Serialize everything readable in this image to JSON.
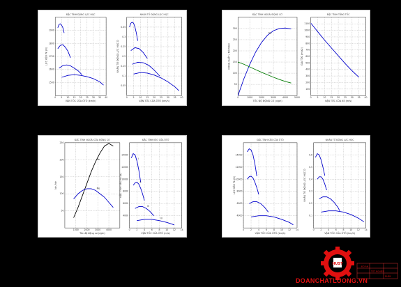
{
  "watermark": "DOANCHATLUONG.VN",
  "logo_text": "HUST",
  "colors": {
    "blue": "#0000cc",
    "green": "#007a00",
    "black": "#000000",
    "red": "#e01010"
  },
  "panels": [
    {
      "id": "p1",
      "title": "ĐẶC TÍNH ĐỘNG LỰC HỌC",
      "xlabel": "VẬN TỐC CỦA ÔTÔ (km/h)",
      "ylabel": "LỰC KÉO Pk (N)",
      "chart_data": {
        "type": "line",
        "xlim": [
          0,
          40
        ],
        "ylim": [
          1400,
          2000
        ],
        "xticks": [
          0,
          5,
          10,
          15,
          20,
          25,
          30,
          35,
          40
        ],
        "yticks": [
          1500,
          1600,
          1700,
          1800,
          1900
        ],
        "series": [
          {
            "name": "",
            "color": "#0000cc",
            "x": [
              2,
              3,
              4,
              5,
              6,
              7
            ],
            "y": [
              1920,
              1945,
              1950,
              1940,
              1920,
              1880
            ]
          },
          {
            "name": "",
            "color": "#0000cc",
            "x": [
              2,
              4,
              6,
              8,
              10,
              12
            ],
            "y": [
              1760,
              1785,
              1790,
              1770,
              1740,
              1690
            ]
          },
          {
            "name": "",
            "color": "#0000cc",
            "x": [
              3,
              6,
              9,
              12,
              15,
              18,
              21
            ],
            "y": [
              1610,
              1630,
              1635,
              1628,
              1610,
              1590,
              1560
            ]
          },
          {
            "name": "",
            "color": "#0000cc",
            "x": [
              5,
              10,
              15,
              20,
              25,
              30,
              35,
              38
            ],
            "y": [
              1540,
              1555,
              1560,
              1555,
              1545,
              1530,
              1505,
              1480
            ]
          }
        ]
      }
    },
    {
      "id": "p2",
      "title": "NHÂN TỐ ĐỘNG LỰC HỌC",
      "xlabel": "VẬN TỐC CỦA ÔTÔ (km/h)",
      "ylabel": "NHÂN TỐ ĐỘNG LỰC HỌC D",
      "chart_data": {
        "type": "line",
        "xlim": [
          0,
          40
        ],
        "ylim": [
          0,
          0.4
        ],
        "xticks": [
          0,
          5,
          10,
          15,
          20,
          25,
          30,
          35,
          40
        ],
        "yticks": [
          0.05,
          0.1,
          0.15,
          0.2,
          0.25,
          0.3,
          0.35
        ],
        "series": [
          {
            "name": "",
            "color": "#0000cc",
            "x": [
              2,
              3,
              4,
              5,
              6,
              7,
              8
            ],
            "y": [
              0.35,
              0.37,
              0.375,
              0.37,
              0.35,
              0.32,
              0.28
            ]
          },
          {
            "name": "",
            "color": "#0000cc",
            "x": [
              3,
              6,
              9,
              12,
              15
            ],
            "y": [
              0.23,
              0.245,
              0.24,
              0.22,
              0.19
            ]
          },
          {
            "name": "",
            "color": "#0000cc",
            "x": [
              4,
              8,
              12,
              16,
              20,
              24
            ],
            "y": [
              0.16,
              0.17,
              0.168,
              0.155,
              0.13,
              0.1
            ]
          },
          {
            "name": "",
            "color": "#0000cc",
            "x": [
              5,
              10,
              15,
              20,
              25,
              30,
              35,
              38
            ],
            "y": [
              0.11,
              0.118,
              0.115,
              0.105,
              0.09,
              0.07,
              0.045,
              0.025
            ]
          }
        ]
      }
    },
    {
      "id": "p3",
      "title": "ĐẶC TÍNH NGOÀI ĐỘNG CƠ",
      "xlabel": "TỐC ĐỘ ĐỘNG CƠ (v/ph)",
      "ylabel": "CÔNG SUẤT / MÔ MEN",
      "chart_data": {
        "type": "line",
        "xlim": [
          0,
          5000
        ],
        "ylim": [
          0,
          350
        ],
        "xticks": [
          0,
          1000,
          2000,
          3000,
          4000,
          5000
        ],
        "yticks": [
          50,
          100,
          150,
          200,
          250,
          300
        ],
        "series": [
          {
            "name": "Ne",
            "color": "#0000cc",
            "x": [
              0,
              500,
              1000,
              1500,
              2000,
              2500,
              3000,
              3500,
              4000,
              4500
            ],
            "y": [
              0,
              75,
              140,
              195,
              238,
              270,
              290,
              300,
              302,
              298
            ]
          },
          {
            "name": "Me",
            "color": "#007a00",
            "x": [
              0,
              500,
              1000,
              1500,
              2000,
              2500,
              3000,
              3500,
              4000,
              4500
            ],
            "y": [
              150,
              140,
              128,
              116,
              104,
              93,
              82,
              72,
              63,
              56
            ]
          }
        ]
      }
    },
    {
      "id": "p4",
      "title": "ĐẶC TÍNH TĂNG TỐC",
      "xlabel": "VẬN TỐC CỦA XE (m/s)",
      "ylabel": "GIA TỐC (m/s2)",
      "chart_data": {
        "type": "line",
        "xlim": [
          0,
          40
        ],
        "ylim": [
          0,
          1200
        ],
        "xticks": [
          0,
          5,
          10,
          15,
          20,
          25,
          30,
          35,
          40
        ],
        "yticks": [
          100,
          200,
          300,
          400,
          500,
          600,
          700,
          800,
          900,
          1000,
          1100
        ],
        "series": [
          {
            "name": "",
            "color": "#0000cc",
            "x": [
              0,
              5,
              10,
              15,
              20,
              25,
              30,
              35
            ],
            "y": [
              1110,
              980,
              850,
              730,
              610,
              490,
              380,
              280
            ]
          }
        ]
      }
    },
    {
      "id": "p5",
      "title": "ĐẶC TÍNH NGOÀI CỦA ĐỘNG CƠ",
      "xlabel": "Tốc độ động cơ (v/ph)",
      "ylabel": "Ne, Me",
      "chart_data": {
        "type": "line",
        "xlim": [
          0,
          5000
        ],
        "ylim": [
          0,
          250
        ],
        "xticks": [
          1000,
          2000,
          3000,
          4000
        ],
        "yticks": [
          50,
          100,
          150,
          200,
          250
        ],
        "series": [
          {
            "name": "Ne",
            "color": "#000000",
            "x": [
              800,
              1200,
              1600,
              2000,
              2400,
              2800,
              3200,
              3600,
              4000,
              4400
            ],
            "y": [
              30,
              60,
              95,
              130,
              165,
              195,
              220,
              240,
              248,
              240
            ]
          },
          {
            "name": "Me",
            "color": "#0000cc",
            "x": [
              800,
              1200,
              1600,
              2000,
              2400,
              2800,
              3200,
              3600,
              4000,
              4400
            ],
            "y": [
              85,
              100,
              110,
              115,
              115,
              110,
              100,
              90,
              75,
              60
            ]
          }
        ]
      }
    },
    {
      "id": "p6",
      "title": "ĐẶC TÍNH KÉO CỦA ÔTÔ",
      "xlabel": "VẬN TỐC CỦA ÔTÔ (m/s)",
      "ylabel": "ĐẶC TÍNH KÉO Pk (N)",
      "chart_data": {
        "type": "line",
        "xlim": [
          0,
          14
        ],
        "ylim": [
          2000,
          16000
        ],
        "xticks": [
          0,
          2,
          4,
          6,
          8,
          10,
          12,
          14
        ],
        "yticks": [
          4000,
          6000,
          8000,
          10000,
          12000,
          14000
        ],
        "series": [
          {
            "name": "I",
            "color": "#0000cc",
            "x": [
              0.5,
              1,
              1.5,
              2,
              2.5,
              3
            ],
            "y": [
              13500,
              14200,
              14000,
              13000,
              11500,
              9500
            ]
          },
          {
            "name": "II",
            "color": "#0000cc",
            "x": [
              1,
              1.5,
              2,
              2.5,
              3,
              3.5,
              4
            ],
            "y": [
              9000,
              9400,
              9500,
              9200,
              8500,
              7600,
              6500
            ]
          },
          {
            "name": "III",
            "color": "#0000cc",
            "x": [
              1.5,
              2.5,
              3.5,
              4.5,
              5.5,
              6.5
            ],
            "y": [
              5200,
              5500,
              5500,
              5200,
              4700,
              4000
            ]
          },
          {
            "name": "IV",
            "color": "#0000cc",
            "x": [
              2,
              4,
              6,
              8,
              10,
              12
            ],
            "y": [
              3200,
              3400,
              3400,
              3200,
              2900,
              2500
            ]
          }
        ]
      }
    },
    {
      "id": "p7",
      "title": "ĐẶC TÍNH KÉO CỦA ÔTÔ",
      "xlabel": "VẬN TỐC CỦA ÔTÔ (km/h)",
      "ylabel": "LỰC KÉO Pk (N)",
      "chart_data": {
        "type": "line",
        "xlim": [
          0,
          14
        ],
        "ylim": [
          2000,
          16000
        ],
        "xticks": [
          0,
          2,
          4,
          6,
          8,
          10,
          12,
          14
        ],
        "yticks": [
          4000,
          6000,
          8000,
          10000,
          12000,
          14000
        ],
        "series": [
          {
            "name": "",
            "color": "#0000cc",
            "x": [
              1,
              1.5,
              2,
              2.5,
              3,
              3.5
            ],
            "y": [
              14500,
              15000,
              14800,
              14000,
              12500,
              10500
            ]
          },
          {
            "name": "",
            "color": "#0000cc",
            "x": [
              1,
              1.5,
              2,
              2.5,
              3,
              3.5,
              4
            ],
            "y": [
              10000,
              10400,
              10500,
              10200,
              9500,
              8600,
              7500
            ]
          },
          {
            "name": "",
            "color": "#0000cc",
            "x": [
              1.5,
              2.5,
              3.5,
              4.5,
              5.5,
              6.5
            ],
            "y": [
              6000,
              6300,
              6300,
              6000,
              5400,
              4600
            ]
          },
          {
            "name": "",
            "color": "#0000cc",
            "x": [
              2,
              4,
              6,
              8,
              10,
              12,
              13
            ],
            "y": [
              3800,
              4000,
              4000,
              3800,
              3400,
              2900,
              2500
            ]
          }
        ]
      }
    },
    {
      "id": "p8",
      "title": "NHÂN TỐ ĐỘNG LỰC HỌC",
      "xlabel": "VẬN TỐC CỦA ÔTÔ (km/h)",
      "ylabel": "NHÂN TỐ ĐỘNG LỰC HỌC D",
      "chart_data": {
        "type": "line",
        "xlim": [
          0,
          14
        ],
        "ylim": [
          0,
          0.7
        ],
        "xticks": [
          0,
          2,
          4,
          6,
          8,
          10,
          12,
          14
        ],
        "yticks": [
          0.1,
          0.2,
          0.3,
          0.4,
          0.5,
          0.6
        ],
        "series": [
          {
            "name": "",
            "color": "#0000cc",
            "x": [
              0.5,
              1,
              1.5,
              2,
              2.5,
              3
            ],
            "y": [
              0.58,
              0.61,
              0.6,
              0.56,
              0.5,
              0.43
            ]
          },
          {
            "name": "",
            "color": "#0000cc",
            "x": [
              1,
              1.5,
              2,
              2.5,
              3,
              3.5
            ],
            "y": [
              0.4,
              0.42,
              0.42,
              0.4,
              0.36,
              0.31
            ]
          },
          {
            "name": "",
            "color": "#0000cc",
            "x": [
              1.5,
              2.5,
              3.5,
              4.5,
              5.5,
              6.5,
              7
            ],
            "y": [
              0.24,
              0.255,
              0.255,
              0.24,
              0.21,
              0.17,
              0.14
            ]
          },
          {
            "name": "",
            "color": "#0000cc",
            "x": [
              2,
              4,
              6,
              8,
              10,
              12,
              13.5
            ],
            "y": [
              0.13,
              0.14,
              0.14,
              0.13,
              0.11,
              0.08,
              0.05
            ]
          }
        ]
      }
    }
  ],
  "titleblock": {
    "rows": [
      "ĐỒ ÁN",
      "TỐT NGHIỆP",
      "ĐHBK"
    ]
  }
}
